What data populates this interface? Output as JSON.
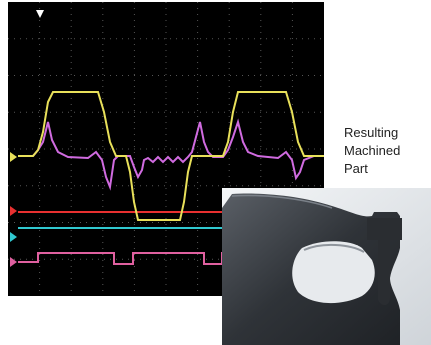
{
  "caption": {
    "line1": "Resulting",
    "line2": "Machined",
    "line3": "Part"
  },
  "scope": {
    "trace_colors": {
      "ch1": "#e8e05a",
      "ch2": "#d06be0",
      "ch3": "#e83030",
      "ch4": "#30c8d0",
      "ch5": "#e060a0"
    },
    "trigger_marker_icon": "down-triangle-icon",
    "channel_marker_icon": "right-triangle-icon"
  },
  "photo": {
    "subject_icon": "machined-metal-part"
  }
}
